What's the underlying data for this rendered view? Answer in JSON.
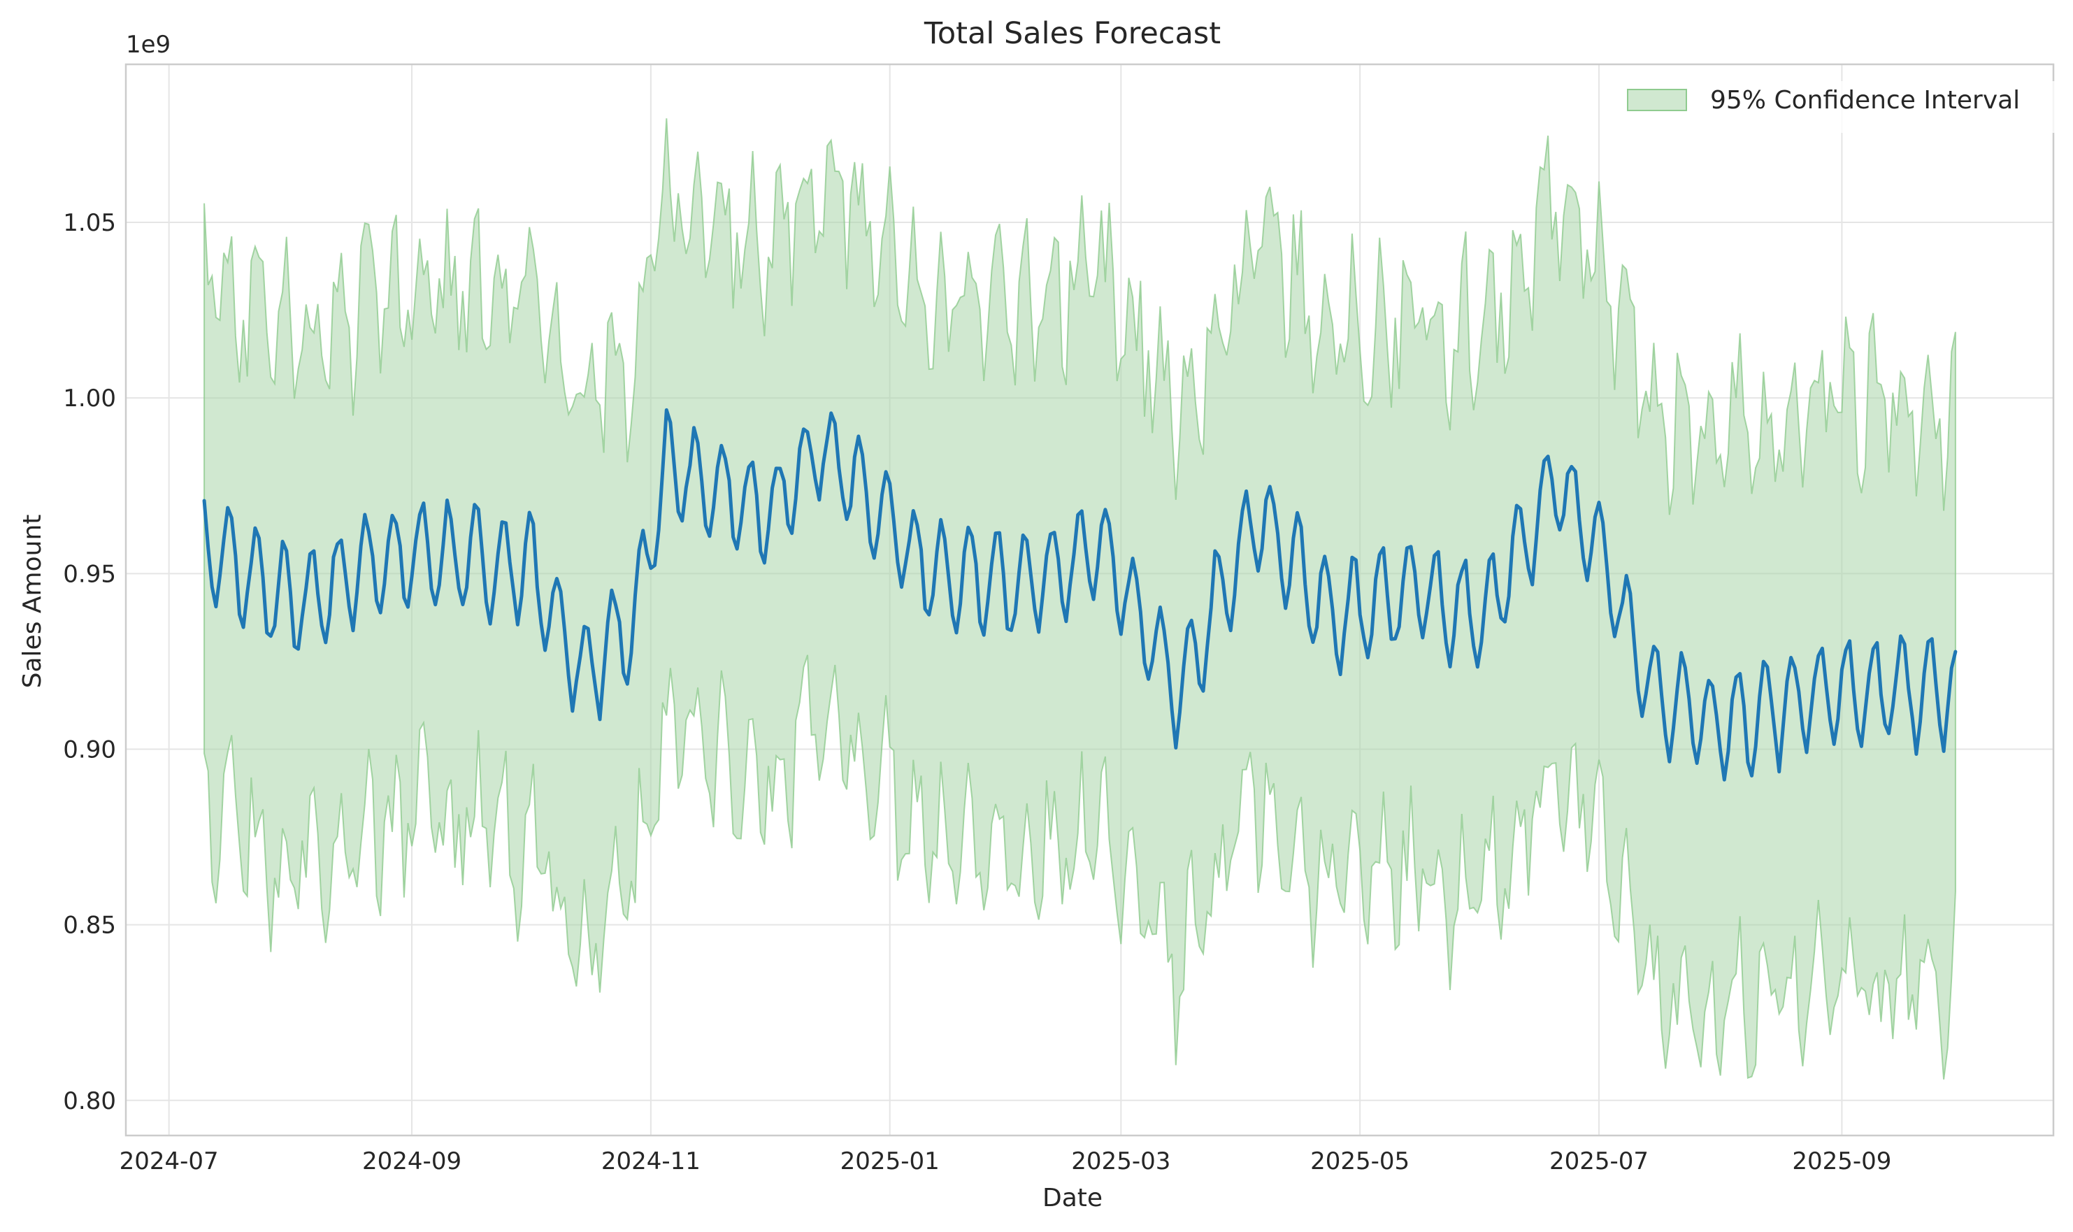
{
  "chart_data": {
    "type": "line",
    "title": "Total Sales Forecast",
    "xlabel": "Date",
    "ylabel": "Sales Amount",
    "y_offset_label": "1e9",
    "y_scale": 1000000000,
    "x_start": "2024-07-10",
    "x_end": "2025-09-30",
    "xlim": [
      "2024-06-20",
      "2025-10-25"
    ],
    "ylim": [
      0.79,
      1.095
    ],
    "x_tick_dates": [
      "2024-07-01",
      "2024-09-01",
      "2024-11-01",
      "2025-01-01",
      "2025-03-01",
      "2025-05-01",
      "2025-07-01",
      "2025-09-01"
    ],
    "x_tick_labels": [
      "2024-07",
      "2024-09",
      "2024-11",
      "2025-01",
      "2025-03",
      "2025-05",
      "2025-07",
      "2025-09"
    ],
    "y_ticks": [
      0.8,
      0.85,
      0.9,
      0.95,
      1.0,
      1.05
    ],
    "y_tick_labels": [
      "0.80",
      "0.85",
      "0.90",
      "0.95",
      "1.00",
      "1.05"
    ],
    "grid": true,
    "legend_position": "top-right",
    "legend": [
      "95% Confidence Interval"
    ],
    "colors": {
      "forecast_line": "#1f77b4",
      "interval_fill": "#a9d6a9",
      "interval_edge": "#8fcb8f"
    },
    "forecast_trend": [
      {
        "date": "2024-07-10",
        "value": 0.955
      },
      {
        "date": "2024-08-01",
        "value": 0.94
      },
      {
        "date": "2024-09-01",
        "value": 0.955
      },
      {
        "date": "2024-10-01",
        "value": 0.95
      },
      {
        "date": "2024-10-15",
        "value": 0.92
      },
      {
        "date": "2024-10-28",
        "value": 0.935
      },
      {
        "date": "2024-11-05",
        "value": 0.98
      },
      {
        "date": "2024-12-01",
        "value": 0.965
      },
      {
        "date": "2024-12-15",
        "value": 0.985
      },
      {
        "date": "2025-01-10",
        "value": 0.95
      },
      {
        "date": "2025-02-01",
        "value": 0.945
      },
      {
        "date": "2025-02-25",
        "value": 0.955
      },
      {
        "date": "2025-03-15",
        "value": 0.915
      },
      {
        "date": "2025-04-05",
        "value": 0.965
      },
      {
        "date": "2025-04-25",
        "value": 0.935
      },
      {
        "date": "2025-05-15",
        "value": 0.945
      },
      {
        "date": "2025-06-01",
        "value": 0.935
      },
      {
        "date": "2025-06-20",
        "value": 0.975
      },
      {
        "date": "2025-07-01",
        "value": 0.955
      },
      {
        "date": "2025-07-15",
        "value": 0.915
      },
      {
        "date": "2025-08-01",
        "value": 0.905
      },
      {
        "date": "2025-09-01",
        "value": 0.915
      },
      {
        "date": "2025-09-30",
        "value": 0.915
      }
    ],
    "weekly_amplitude": 0.015,
    "upper_offset": 0.075,
    "lower_offset": 0.075
  }
}
